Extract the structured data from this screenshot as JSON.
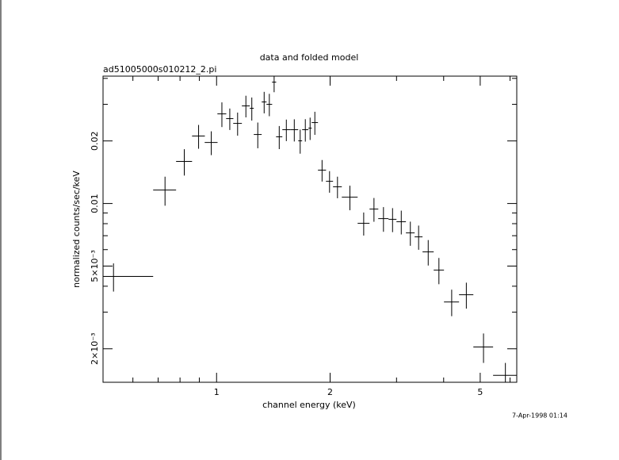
{
  "chart_data": {
    "type": "scatter",
    "title": "data and folded model",
    "subtitle": "ad51005000s010212_2.pi",
    "xlabel": "channel energy (keV)",
    "ylabel": "normalized counts/sec/keV",
    "timestamp": "7-Apr-1998 01:14",
    "xscale": "log",
    "yscale": "log",
    "color": "#000000",
    "xlim": [
      0.5,
      6.25
    ],
    "ylim": [
      0.00138,
      0.041
    ],
    "xticks": [
      1,
      2,
      5
    ],
    "xminor": [
      0.6,
      0.7,
      0.8,
      0.9,
      3,
      4,
      6
    ],
    "yticks": [
      {
        "value": 0.002,
        "label": "2×10⁻³"
      },
      {
        "value": 0.005,
        "label": "5×10⁻³"
      },
      {
        "value": 0.01,
        "label": "0.01"
      },
      {
        "value": 0.02,
        "label": "0.02"
      }
    ],
    "yminor": [
      0.003,
      0.004,
      0.006,
      0.007,
      0.008,
      0.009,
      0.03,
      0.04
    ],
    "x": [
      0.533,
      0.73,
      0.821,
      0.896,
      0.968,
      1.033,
      1.084,
      1.137,
      1.196,
      1.24,
      1.286,
      1.337,
      1.38,
      1.421,
      1.466,
      1.531,
      1.607,
      1.666,
      1.719,
      1.77,
      1.822,
      1.904,
      1.993,
      2.092,
      2.257,
      2.455,
      2.614,
      2.77,
      2.928,
      3.088,
      3.264,
      3.433,
      3.64,
      3.886,
      4.201,
      4.594,
      5.102,
      5.831
    ],
    "xerr": [
      0.146,
      0.051,
      0.04,
      0.035,
      0.038,
      0.028,
      0.024,
      0.03,
      0.029,
      0.015,
      0.031,
      0.02,
      0.024,
      0.018,
      0.028,
      0.037,
      0.039,
      0.02,
      0.033,
      0.018,
      0.035,
      0.047,
      0.043,
      0.056,
      0.109,
      0.089,
      0.07,
      0.087,
      0.071,
      0.089,
      0.087,
      0.083,
      0.124,
      0.122,
      0.193,
      0.201,
      0.307,
      0.422
    ],
    "y": [
      0.00446,
      0.01161,
      0.01594,
      0.02111,
      0.01967,
      0.02699,
      0.02561,
      0.02429,
      0.02948,
      0.02871,
      0.02148,
      0.0308,
      0.03,
      0.03837,
      0.02093,
      0.02265,
      0.02265,
      0.02002,
      0.02265,
      0.02305,
      0.02451,
      0.01447,
      0.01279,
      0.01203,
      0.01073,
      0.00803,
      0.0094,
      0.00846,
      0.00839,
      0.00817,
      0.00722,
      0.00691,
      0.00585,
      0.00478,
      0.00336,
      0.00364,
      0.00204,
      0.00149
    ],
    "yerr": [
      0.00069,
      0.00185,
      0.00231,
      0.00277,
      0.00258,
      0.00367,
      0.00303,
      0.00309,
      0.00352,
      0.00365,
      0.00304,
      0.00365,
      0.0037,
      0.00406,
      0.00266,
      0.00269,
      0.00277,
      0.00265,
      0.0028,
      0.00284,
      0.00312,
      0.00172,
      0.00152,
      0.00143,
      0.00145,
      0.00102,
      0.00123,
      0.00115,
      0.00111,
      0.00107,
      0.00096,
      0.00092,
      0.00082,
      0.00069,
      0.00049,
      0.00052,
      0.00033,
      0.00022
    ]
  }
}
